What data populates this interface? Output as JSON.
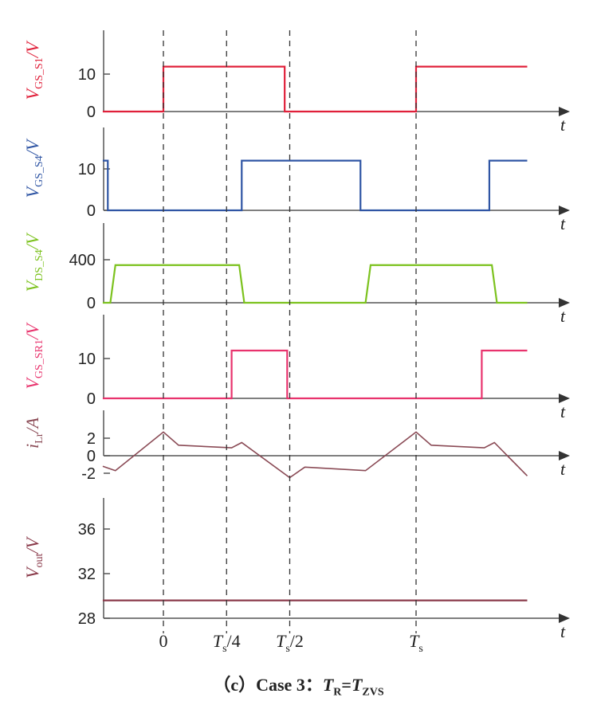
{
  "chart_data": {
    "type": "line",
    "x_ticks": [
      {
        "label": "0",
        "x": 0
      },
      {
        "label": "T_s/4",
        "x": 0.25
      },
      {
        "label": "T_s/2",
        "x": 0.5
      },
      {
        "label": "T_s",
        "x": 1
      }
    ],
    "xlim": [
      -0.25,
      1.45
    ],
    "x_axis_symbol": "t",
    "panels": [
      {
        "id": "vgs-s1",
        "ylabel_main": "V",
        "ylabel_sub": "GS_S1",
        "ylabel_unit": "/V",
        "color": "#e0203a",
        "ylim": [
          0,
          15
        ],
        "yticks": [
          "0",
          "10"
        ],
        "ytick_values": [
          0,
          10
        ],
        "series": [
          [
            -0.24,
            0
          ],
          [
            0,
            0
          ],
          [
            0,
            12
          ],
          [
            0.48,
            12
          ],
          [
            0.48,
            0
          ],
          [
            1,
            0
          ],
          [
            1,
            12
          ],
          [
            1.44,
            12
          ]
        ]
      },
      {
        "id": "vgs-s4",
        "ylabel_main": "V",
        "ylabel_sub": "GS_S4",
        "ylabel_unit": "/V",
        "color": "#2f55a4",
        "ylim": [
          0,
          15
        ],
        "yticks": [
          "0",
          "10"
        ],
        "ytick_values": [
          0,
          10
        ],
        "series": [
          [
            -0.24,
            12
          ],
          [
            -0.22,
            12
          ],
          [
            -0.22,
            0
          ],
          [
            0.31,
            0
          ],
          [
            0.31,
            12
          ],
          [
            0.78,
            12
          ],
          [
            0.78,
            0
          ],
          [
            1.29,
            0
          ],
          [
            1.29,
            12
          ],
          [
            1.44,
            12
          ]
        ]
      },
      {
        "id": "vds-s4",
        "ylabel_main": "V",
        "ylabel_sub": "DS_S4",
        "ylabel_unit": "/V",
        "color": "#7cc21e",
        "ylim": [
          0,
          550
        ],
        "yticks": [
          "0",
          "400"
        ],
        "ytick_values": [
          0,
          400
        ],
        "series": [
          [
            -0.24,
            0
          ],
          [
            -0.21,
            0
          ],
          [
            -0.19,
            350
          ],
          [
            0.3,
            350
          ],
          [
            0.32,
            0
          ],
          [
            0.8,
            0
          ],
          [
            0.82,
            350
          ],
          [
            1.3,
            350
          ],
          [
            1.32,
            0
          ],
          [
            1.44,
            0
          ]
        ]
      },
      {
        "id": "vgs-sr1",
        "ylabel_main": "V",
        "ylabel_sub": "GS_SR1",
        "ylabel_unit": "/V",
        "color": "#e8336d",
        "ylim": [
          0,
          15
        ],
        "yticks": [
          "0",
          "10"
        ],
        "ytick_values": [
          0,
          10
        ],
        "series": [
          [
            -0.24,
            0
          ],
          [
            0.27,
            0
          ],
          [
            0.27,
            12
          ],
          [
            0.49,
            12
          ],
          [
            0.49,
            0
          ],
          [
            1.26,
            0
          ],
          [
            1.26,
            12
          ],
          [
            1.44,
            12
          ]
        ]
      },
      {
        "id": "i-lr",
        "ylabel_main": "i",
        "ylabel_sub": "Lr",
        "ylabel_unit": "/A",
        "color": "#8a4a55",
        "ylim": [
          -4.5,
          4.5
        ],
        "yticks": [
          "-2",
          "0",
          "2"
        ],
        "ytick_values": [
          -2,
          0,
          2
        ],
        "series": [
          [
            -0.24,
            -1.2
          ],
          [
            -0.19,
            -1.7
          ],
          [
            0,
            2.7
          ],
          [
            0.06,
            1.2
          ],
          [
            0.27,
            0.9
          ],
          [
            0.31,
            1.5
          ],
          [
            0.5,
            -2.5
          ],
          [
            0.56,
            -1.3
          ],
          [
            0.8,
            -1.7
          ],
          [
            1,
            2.7
          ],
          [
            1.06,
            1.2
          ],
          [
            1.27,
            0.9
          ],
          [
            1.31,
            1.5
          ],
          [
            1.44,
            -2.3
          ]
        ]
      },
      {
        "id": "vout",
        "ylabel_main": "V",
        "ylabel_sub": "out",
        "ylabel_unit": "/V",
        "color": "#8a3a4a",
        "ylim": [
          28,
          40
        ],
        "yticks": [
          "28",
          "32",
          "36"
        ],
        "ytick_values": [
          28,
          32,
          36
        ],
        "series": [
          [
            -0.24,
            29.6
          ],
          [
            1.44,
            29.6
          ]
        ]
      }
    ]
  },
  "caption": {
    "prefix": "（c）Case 3：",
    "lhs_main": "T",
    "lhs_sub": "R",
    "eq": "=",
    "rhs_main": "T",
    "rhs_sub": "ZVS"
  }
}
